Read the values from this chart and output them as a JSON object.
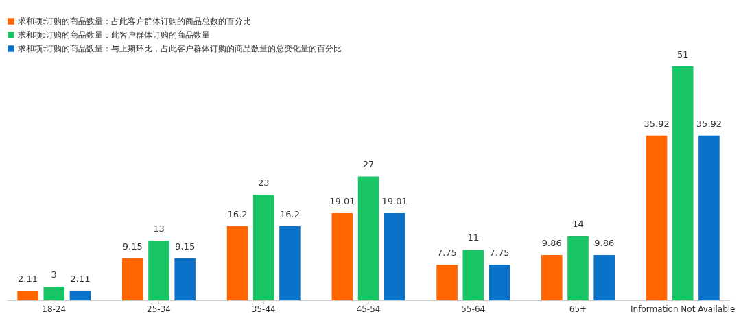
{
  "chart_data": {
    "type": "bar",
    "categories": [
      "18-24",
      "25-34",
      "35-44",
      "45-54",
      "55-64",
      "65+",
      "Information Not Available"
    ],
    "series": [
      {
        "name": "求和项:订购的商品数量：占此客户群体订购的商品总数的百分比",
        "color": "#ff6600",
        "values": [
          2.11,
          9.15,
          16.2,
          19.01,
          7.75,
          9.86,
          35.92
        ]
      },
      {
        "name": "求和项:订购的商品数量：此客户群体订购的商品数量",
        "color": "#19c464",
        "values": [
          3,
          13,
          23,
          27,
          11,
          14,
          51
        ]
      },
      {
        "name": "求和项:订购的商品数量：与上期环比，占此客户群体订购的商品数量的总变化量的百分比",
        "color": "#0a72c8",
        "values": [
          2.11,
          9.15,
          16.2,
          19.01,
          7.75,
          9.86,
          35.92
        ]
      }
    ],
    "data_labels": true,
    "legend": "top",
    "tick_labels": "x",
    "grid": false
  }
}
